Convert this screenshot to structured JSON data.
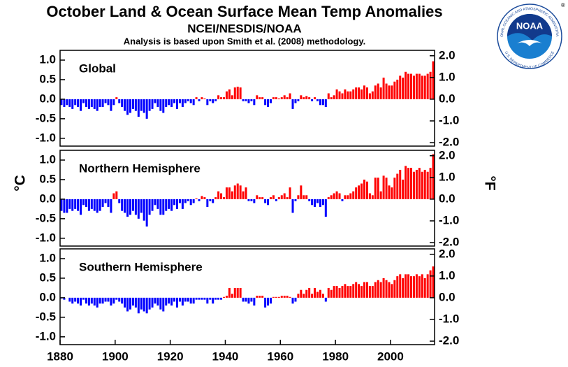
{
  "title": "October Land & Ocean Surface Mean Temp Anomalies",
  "subtitle": "NCEI/NESDIS/NOAA",
  "note": "Analysis is based upon Smith et al. (2008) methodology.",
  "y_label": "°C",
  "y2_label": "°F",
  "logo": {
    "name": "NOAA",
    "ring_top": "NATIONAL OCEANIC AND ATMOSPHERIC ADMINISTRATION",
    "ring_bottom": "U.S. DEPARTMENT OF COMMERCE",
    "mark": "®"
  },
  "chart_data": [
    {
      "type": "bar",
      "title": "Global",
      "x": [
        1880,
        1881,
        1882,
        1883,
        1884,
        1885,
        1886,
        1887,
        1888,
        1889,
        1890,
        1891,
        1892,
        1893,
        1894,
        1895,
        1896,
        1897,
        1898,
        1899,
        1900,
        1901,
        1902,
        1903,
        1904,
        1905,
        1906,
        1907,
        1908,
        1909,
        1910,
        1911,
        1912,
        1913,
        1914,
        1915,
        1916,
        1917,
        1918,
        1919,
        1920,
        1921,
        1922,
        1923,
        1924,
        1925,
        1926,
        1927,
        1928,
        1929,
        1930,
        1931,
        1932,
        1933,
        1934,
        1935,
        1936,
        1937,
        1938,
        1939,
        1940,
        1941,
        1942,
        1943,
        1944,
        1945,
        1946,
        1947,
        1948,
        1949,
        1950,
        1951,
        1952,
        1953,
        1954,
        1955,
        1956,
        1957,
        1958,
        1959,
        1960,
        1961,
        1962,
        1963,
        1964,
        1965,
        1966,
        1967,
        1968,
        1969,
        1970,
        1971,
        1972,
        1973,
        1974,
        1975,
        1976,
        1977,
        1978,
        1979,
        1980,
        1981,
        1982,
        1983,
        1984,
        1985,
        1986,
        1987,
        1988,
        1989,
        1990,
        1991,
        1992,
        1993,
        1994,
        1995,
        1996,
        1997,
        1998,
        1999,
        2000,
        2001,
        2002,
        2003,
        2004,
        2005,
        2006,
        2007,
        2008,
        2009,
        2010,
        2011,
        2012,
        2013,
        2014,
        2015
      ],
      "values": [
        -0.15,
        -0.2,
        -0.15,
        -0.2,
        -0.25,
        -0.15,
        -0.2,
        -0.3,
        -0.1,
        -0.2,
        -0.25,
        -0.2,
        -0.25,
        -0.3,
        -0.2,
        -0.2,
        -0.1,
        -0.15,
        -0.3,
        -0.15,
        0.05,
        -0.1,
        -0.2,
        -0.3,
        -0.4,
        -0.35,
        -0.25,
        -0.3,
        -0.45,
        -0.3,
        -0.35,
        -0.5,
        -0.3,
        -0.25,
        -0.1,
        -0.2,
        -0.3,
        -0.35,
        -0.2,
        -0.15,
        -0.2,
        -0.1,
        -0.25,
        -0.1,
        -0.2,
        -0.1,
        -0.05,
        -0.1,
        -0.15,
        0.05,
        -0.05,
        0.05,
        0.02,
        -0.15,
        -0.05,
        -0.1,
        -0.05,
        0.1,
        0.05,
        0.05,
        0.2,
        0.25,
        0.1,
        0.3,
        0.32,
        0.3,
        -0.05,
        -0.05,
        -0.1,
        -0.05,
        -0.15,
        0.1,
        0.05,
        0.05,
        -0.15,
        -0.2,
        -0.1,
        0.05,
        0.05,
        0.02,
        0.05,
        0.1,
        0.05,
        0.15,
        -0.25,
        -0.1,
        -0.05,
        0.1,
        0.05,
        0.08,
        0.05,
        -0.05,
        0.05,
        -0.05,
        -0.15,
        -0.15,
        -0.2,
        0.15,
        0.05,
        0.1,
        0.25,
        0.2,
        0.15,
        0.25,
        0.2,
        0.2,
        0.25,
        0.3,
        0.3,
        0.25,
        0.35,
        0.3,
        0.15,
        0.2,
        0.35,
        0.4,
        0.3,
        0.55,
        0.4,
        0.35,
        0.35,
        0.45,
        0.5,
        0.6,
        0.55,
        0.7,
        0.65,
        0.65,
        0.6,
        0.65,
        0.65,
        0.6,
        0.6,
        0.65,
        0.7,
        0.97
      ],
      "colors": {
        "positive": "#ff0000",
        "negative": "#0000ff"
      },
      "xlim": [
        1880,
        2016
      ],
      "ylim": [
        -1.2,
        1.25
      ],
      "y2lim": [
        -2.16,
        2.25
      ],
      "yticks": [
        {
          "value": 1,
          "label": "1.0"
        },
        {
          "value": 0.5,
          "label": "0.5"
        },
        {
          "value": 0,
          "label": "0.0"
        },
        {
          "value": -0.5,
          "label": "-0.5"
        },
        {
          "value": -1,
          "label": "-1.0"
        }
      ],
      "y2ticks": [
        {
          "value": 2,
          "label": "2.0"
        },
        {
          "value": 1,
          "label": "1.0"
        },
        {
          "value": 0,
          "label": "0.0"
        },
        {
          "value": -1,
          "label": "-1.0"
        },
        {
          "value": -2,
          "label": "-2.0"
        }
      ]
    },
    {
      "type": "bar",
      "title": "Northern Hemisphere",
      "x": [
        1880,
        1881,
        1882,
        1883,
        1884,
        1885,
        1886,
        1887,
        1888,
        1889,
        1890,
        1891,
        1892,
        1893,
        1894,
        1895,
        1896,
        1897,
        1898,
        1899,
        1900,
        1901,
        1902,
        1903,
        1904,
        1905,
        1906,
        1907,
        1908,
        1909,
        1910,
        1911,
        1912,
        1913,
        1914,
        1915,
        1916,
        1917,
        1918,
        1919,
        1920,
        1921,
        1922,
        1923,
        1924,
        1925,
        1926,
        1927,
        1928,
        1929,
        1930,
        1931,
        1932,
        1933,
        1934,
        1935,
        1936,
        1937,
        1938,
        1939,
        1940,
        1941,
        1942,
        1943,
        1944,
        1945,
        1946,
        1947,
        1948,
        1949,
        1950,
        1951,
        1952,
        1953,
        1954,
        1955,
        1956,
        1957,
        1958,
        1959,
        1960,
        1961,
        1962,
        1963,
        1964,
        1965,
        1966,
        1967,
        1968,
        1969,
        1970,
        1971,
        1972,
        1973,
        1974,
        1975,
        1976,
        1977,
        1978,
        1979,
        1980,
        1981,
        1982,
        1983,
        1984,
        1985,
        1986,
        1987,
        1988,
        1989,
        1990,
        1991,
        1992,
        1993,
        1994,
        1995,
        1996,
        1997,
        1998,
        1999,
        2000,
        2001,
        2002,
        2003,
        2004,
        2005,
        2006,
        2007,
        2008,
        2009,
        2010,
        2011,
        2012,
        2013,
        2014,
        2015
      ],
      "values": [
        -0.3,
        -0.35,
        -0.35,
        -0.25,
        -0.3,
        -0.25,
        -0.3,
        -0.4,
        -0.15,
        -0.2,
        -0.3,
        -0.25,
        -0.3,
        -0.35,
        -0.3,
        -0.2,
        -0.1,
        -0.2,
        -0.35,
        0.15,
        0.2,
        -0.1,
        -0.3,
        -0.35,
        -0.45,
        -0.4,
        -0.3,
        -0.4,
        -0.5,
        -0.35,
        -0.55,
        -0.7,
        -0.4,
        -0.3,
        -0.15,
        -0.25,
        -0.4,
        -0.4,
        -0.3,
        -0.25,
        -0.3,
        -0.15,
        -0.25,
        -0.1,
        -0.25,
        -0.1,
        -0.05,
        -0.15,
        -0.1,
        0.02,
        -0.05,
        0.08,
        0.05,
        -0.2,
        -0.05,
        -0.1,
        0.05,
        0.2,
        0.15,
        0.05,
        0.3,
        0.3,
        0.2,
        0.35,
        0.4,
        0.35,
        0.2,
        0.3,
        -0.05,
        -0.05,
        -0.1,
        0.1,
        0.05,
        0.05,
        -0.1,
        -0.15,
        0.05,
        0.1,
        -0.05,
        0.05,
        0.1,
        0.15,
        0.05,
        0.3,
        -0.35,
        -0.05,
        0.1,
        0.35,
        0.1,
        0.1,
        -0.05,
        -0.15,
        -0.2,
        -0.1,
        -0.2,
        -0.15,
        -0.45,
        0.05,
        0.1,
        0.15,
        0.2,
        0.15,
        -0.05,
        0.1,
        0.1,
        0.15,
        0.2,
        0.3,
        0.35,
        0.4,
        0.5,
        0.45,
        0.15,
        0.1,
        0.55,
        0.55,
        0.2,
        0.6,
        0.55,
        0.35,
        0.3,
        0.55,
        0.65,
        0.75,
        0.5,
        0.85,
        0.8,
        0.8,
        0.7,
        0.75,
        0.8,
        0.7,
        0.75,
        0.7,
        0.8,
        1.15
      ],
      "colors": {
        "positive": "#ff0000",
        "negative": "#0000ff"
      },
      "xlim": [
        1880,
        2016
      ],
      "ylim": [
        -1.2,
        1.25
      ],
      "y2lim": [
        -2.16,
        2.25
      ],
      "yticks": [
        {
          "value": 1,
          "label": "1.0"
        },
        {
          "value": 0.5,
          "label": "0.5"
        },
        {
          "value": 0,
          "label": "0.0"
        },
        {
          "value": -0.5,
          "label": "-0.5"
        },
        {
          "value": -1,
          "label": "-1.0"
        }
      ],
      "y2ticks": [
        {
          "value": 2,
          "label": "2.0"
        },
        {
          "value": 1,
          "label": "1.0"
        },
        {
          "value": 0,
          "label": "0.0"
        },
        {
          "value": -1,
          "label": "-1.0"
        },
        {
          "value": -2,
          "label": "-2.0"
        }
      ]
    },
    {
      "type": "bar",
      "title": "Southern Hemisphere",
      "x": [
        1880,
        1881,
        1882,
        1883,
        1884,
        1885,
        1886,
        1887,
        1888,
        1889,
        1890,
        1891,
        1892,
        1893,
        1894,
        1895,
        1896,
        1897,
        1898,
        1899,
        1900,
        1901,
        1902,
        1903,
        1904,
        1905,
        1906,
        1907,
        1908,
        1909,
        1910,
        1911,
        1912,
        1913,
        1914,
        1915,
        1916,
        1917,
        1918,
        1919,
        1920,
        1921,
        1922,
        1923,
        1924,
        1925,
        1926,
        1927,
        1928,
        1929,
        1930,
        1931,
        1932,
        1933,
        1934,
        1935,
        1936,
        1937,
        1938,
        1939,
        1940,
        1941,
        1942,
        1943,
        1944,
        1945,
        1946,
        1947,
        1948,
        1949,
        1950,
        1951,
        1952,
        1953,
        1954,
        1955,
        1956,
        1957,
        1958,
        1959,
        1960,
        1961,
        1962,
        1963,
        1964,
        1965,
        1966,
        1967,
        1968,
        1969,
        1970,
        1971,
        1972,
        1973,
        1974,
        1975,
        1976,
        1977,
        1978,
        1979,
        1980,
        1981,
        1982,
        1983,
        1984,
        1985,
        1986,
        1987,
        1988,
        1989,
        1990,
        1991,
        1992,
        1993,
        1994,
        1995,
        1996,
        1997,
        1998,
        1999,
        2000,
        2001,
        2002,
        2003,
        2004,
        2005,
        2006,
        2007,
        2008,
        2009,
        2010,
        2011,
        2012,
        2013,
        2014,
        2015
      ],
      "values": [
        -0.02,
        -0.05,
        0,
        -0.1,
        -0.15,
        -0.1,
        -0.15,
        -0.2,
        -0.05,
        -0.15,
        -0.2,
        -0.15,
        -0.2,
        -0.25,
        -0.15,
        -0.15,
        -0.1,
        -0.1,
        -0.2,
        -0.15,
        -0.05,
        -0.1,
        -0.15,
        -0.25,
        -0.35,
        -0.3,
        -0.2,
        -0.25,
        -0.4,
        -0.3,
        -0.35,
        -0.4,
        -0.3,
        -0.25,
        -0.15,
        -0.2,
        -0.3,
        -0.35,
        -0.2,
        -0.15,
        -0.2,
        -0.1,
        -0.25,
        -0.1,
        -0.2,
        -0.1,
        -0.1,
        -0.15,
        -0.15,
        -0.05,
        -0.05,
        -0.05,
        -0.05,
        -0.15,
        -0.05,
        -0.15,
        -0.05,
        -0.05,
        -0.05,
        0.02,
        0.05,
        0.25,
        0.1,
        0.25,
        0.25,
        0.25,
        -0.1,
        -0.1,
        -0.15,
        -0.1,
        -0.2,
        0.05,
        0.05,
        0.05,
        -0.25,
        -0.2,
        -0.15,
        0.02,
        0.02,
        0.02,
        0.05,
        0.05,
        0.05,
        0.02,
        -0.15,
        -0.1,
        0.1,
        0.2,
        0.1,
        0.2,
        0.25,
        0.1,
        0.25,
        0.15,
        0.2,
        0.1,
        -0.1,
        0.25,
        0.2,
        0.3,
        0.3,
        0.25,
        0.3,
        0.35,
        0.3,
        0.3,
        0.35,
        0.4,
        0.35,
        0.3,
        0.4,
        0.4,
        0.3,
        0.3,
        0.4,
        0.45,
        0.4,
        0.5,
        0.45,
        0.4,
        0.35,
        0.45,
        0.55,
        0.6,
        0.5,
        0.6,
        0.6,
        0.55,
        0.55,
        0.6,
        0.55,
        0.6,
        0.5,
        0.6,
        0.7,
        0.8
      ],
      "colors": {
        "positive": "#ff0000",
        "negative": "#0000ff"
      },
      "xlim": [
        1880,
        2016
      ],
      "ylim": [
        -1.2,
        1.25
      ],
      "y2lim": [
        -2.16,
        2.25
      ],
      "yticks": [
        {
          "value": 1,
          "label": "1.0"
        },
        {
          "value": 0.5,
          "label": "0.5"
        },
        {
          "value": 0,
          "label": "0.0"
        },
        {
          "value": -0.5,
          "label": "-0.5"
        },
        {
          "value": -1,
          "label": "-1.0"
        }
      ],
      "y2ticks": [
        {
          "value": 2,
          "label": "2.0"
        },
        {
          "value": 1,
          "label": "1.0"
        },
        {
          "value": 0,
          "label": "0.0"
        },
        {
          "value": -1,
          "label": "-1.0"
        },
        {
          "value": -2,
          "label": "-2.0"
        }
      ],
      "xticks": [
        1880,
        1900,
        1920,
        1940,
        1960,
        1980,
        2000
      ]
    }
  ]
}
